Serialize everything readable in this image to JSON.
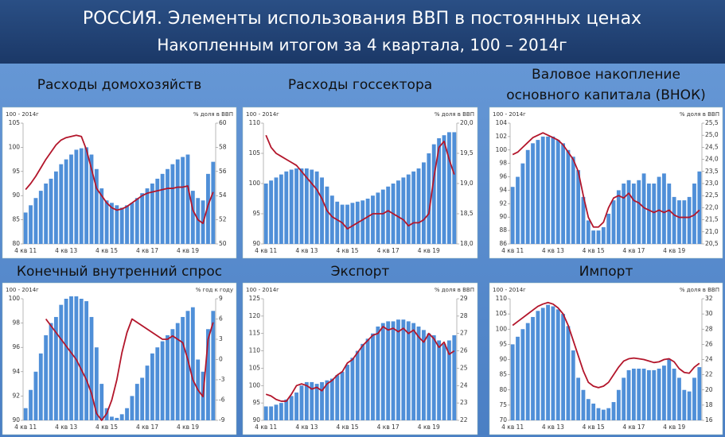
{
  "header": {
    "title": "РОССИЯ. Элементы использования ВВП в постоянных ценах",
    "subtitle": "Накопленным итогом за 4 квартала, 100 – 2014г"
  },
  "chart_data": [
    {
      "type": "combo",
      "title": "Расходы домохозяйств",
      "ylabel": "100 - 2014г",
      "y2label": "% доля в ВВП",
      "categories": [
        "4 кв 11",
        null,
        null,
        null,
        null,
        null,
        null,
        null,
        "4 кв 13",
        null,
        null,
        null,
        null,
        null,
        null,
        null,
        "4 кв 15",
        null,
        null,
        null,
        null,
        null,
        null,
        null,
        "4 кв 17",
        null,
        null,
        null,
        null,
        null,
        null,
        null,
        "4 кв 19",
        null,
        null,
        null,
        null,
        null
      ],
      "ylim": [
        80,
        105
      ],
      "yticks": [
        80,
        85,
        90,
        95,
        100,
        105
      ],
      "y2lim": [
        50,
        60
      ],
      "y2ticks": [
        50,
        52,
        54,
        56,
        58,
        60
      ],
      "series": [
        {
          "type": "bar",
          "color": "#4f8fd8",
          "values": [
            86.5,
            88,
            89.5,
            91,
            92.5,
            93.5,
            95,
            96.5,
            97.5,
            98.5,
            99.5,
            99.8,
            100,
            98.5,
            95.5,
            91.5,
            89,
            88.5,
            88,
            87.5,
            88,
            88.5,
            89.5,
            90.5,
            91.5,
            92.5,
            93.5,
            94.5,
            95.5,
            96.5,
            97.5,
            98,
            98.5,
            91,
            89.5,
            89,
            94.5,
            97
          ]
        },
        {
          "type": "line",
          "axis": "y2",
          "color": "#b3162b",
          "values": [
            54.5,
            55,
            55.6,
            56.3,
            57,
            57.6,
            58.2,
            58.6,
            58.8,
            58.9,
            59,
            58.9,
            57.8,
            56.2,
            54.6,
            54,
            53.4,
            53,
            52.8,
            52.9,
            53.1,
            53.4,
            53.7,
            54,
            54.2,
            54.3,
            54.4,
            54.5,
            54.6,
            54.6,
            54.7,
            54.7,
            54.8,
            52.8,
            52,
            51.7,
            53.2,
            54.3
          ]
        }
      ]
    },
    {
      "type": "combo",
      "title": "Расходы госсектора",
      "ylabel": "100 - 2014г",
      "y2label": "% доля в ВВП",
      "categories": [
        "4 кв 11",
        null,
        null,
        null,
        null,
        null,
        null,
        null,
        "4 кв 13",
        null,
        null,
        null,
        null,
        null,
        null,
        null,
        "4 кв 15",
        null,
        null,
        null,
        null,
        null,
        null,
        null,
        "4 кв 17",
        null,
        null,
        null,
        null,
        null,
        null,
        null,
        "4 кв 19",
        null,
        null,
        null,
        null,
        null
      ],
      "ylim": [
        90,
        110
      ],
      "yticks": [
        90,
        95,
        100,
        105,
        110
      ],
      "y2lim": [
        18,
        20
      ],
      "y2ticks": [
        {
          "value": 18,
          "label": "18,0"
        },
        {
          "value": 18.5,
          "label": "18,5"
        },
        {
          "value": 19,
          "label": "19,0"
        },
        {
          "value": 19.5,
          "label": "19,5"
        },
        {
          "value": 20,
          "label": "20,0"
        }
      ],
      "series": [
        {
          "type": "bar",
          "color": "#4f8fd8",
          "values": [
            100,
            100.5,
            101,
            101.5,
            102,
            102.3,
            102.5,
            102.5,
            102.5,
            102.3,
            102,
            101,
            99.5,
            98,
            97,
            96.5,
            96.5,
            96.8,
            97,
            97.2,
            97.5,
            98,
            98.5,
            99,
            99.5,
            100,
            100.5,
            101,
            101.5,
            102,
            102.5,
            103.5,
            105,
            106.5,
            107.5,
            108,
            108.5,
            108.5
          ]
        },
        {
          "type": "line",
          "axis": "y2",
          "color": "#b3162b",
          "values": [
            19.8,
            19.6,
            19.5,
            19.45,
            19.4,
            19.35,
            19.3,
            19.2,
            19.1,
            19.0,
            18.9,
            18.75,
            18.55,
            18.45,
            18.4,
            18.35,
            18.25,
            18.3,
            18.35,
            18.4,
            18.45,
            18.5,
            18.5,
            18.5,
            18.55,
            18.5,
            18.45,
            18.4,
            18.3,
            18.35,
            18.35,
            18.4,
            18.5,
            19.1,
            19.6,
            19.7,
            19.4,
            19.15
          ]
        }
      ]
    },
    {
      "type": "combo",
      "title": [
        "Валовое накопление",
        "основного капитала (ВНОК)"
      ],
      "ylabel": "100 - 2014г",
      "y2label": "% доля в ВВП",
      "categories": [
        "4 кв 11",
        null,
        null,
        null,
        null,
        null,
        null,
        null,
        "4 кв 13",
        null,
        null,
        null,
        null,
        null,
        null,
        null,
        "4 кв 15",
        null,
        null,
        null,
        null,
        null,
        null,
        null,
        "4 кв 17",
        null,
        null,
        null,
        null,
        null,
        null,
        null,
        "4 кв 19",
        null,
        null,
        null,
        null,
        null
      ],
      "ylim": [
        86,
        104
      ],
      "yticks": [
        86,
        88,
        90,
        92,
        94,
        96,
        98,
        100,
        102,
        104
      ],
      "y2lim": [
        20.5,
        25.5
      ],
      "y2ticks": [
        {
          "value": 20.5,
          "label": "20,5"
        },
        {
          "value": 21,
          "label": "21,0"
        },
        {
          "value": 21.5,
          "label": "21,5"
        },
        {
          "value": 22,
          "label": "22,0"
        },
        {
          "value": 22.5,
          "label": "22,5"
        },
        {
          "value": 23,
          "label": "23,0"
        },
        {
          "value": 23.5,
          "label": "23,5"
        },
        {
          "value": 24,
          "label": "24,0"
        },
        {
          "value": 24.5,
          "label": "24,5"
        },
        {
          "value": 25,
          "label": "25,0"
        },
        {
          "value": 25.5,
          "label": "25,5"
        }
      ],
      "series": [
        {
          "type": "bar",
          "color": "#4f8fd8",
          "values": [
            94.5,
            96,
            98,
            100,
            101,
            101.5,
            102,
            102,
            102,
            101.5,
            101,
            100,
            99,
            97,
            93,
            89.5,
            88,
            88,
            88.5,
            90.5,
            92.5,
            94,
            95,
            95.5,
            95,
            95.5,
            96.5,
            95,
            95,
            96,
            96.5,
            95,
            93,
            92.5,
            92.5,
            93,
            95,
            96.8
          ]
        },
        {
          "type": "line",
          "axis": "y2",
          "color": "#b3162b",
          "values": [
            24.2,
            24.3,
            24.5,
            24.7,
            24.9,
            25.0,
            25.1,
            25.0,
            24.9,
            24.8,
            24.6,
            24.3,
            24.0,
            23.5,
            22.5,
            21.6,
            21.2,
            21.2,
            21.4,
            22.0,
            22.4,
            22.5,
            22.4,
            22.6,
            22.3,
            22.2,
            22.0,
            21.9,
            21.8,
            21.9,
            21.8,
            21.9,
            21.7,
            21.6,
            21.6,
            21.6,
            21.7,
            21.9
          ]
        }
      ]
    },
    {
      "type": "combo",
      "title": "Конечный внутренний спрос",
      "ylabel": "100 - 2014г",
      "y2label": "% год к году",
      "categories": [
        "4 кв 11",
        null,
        null,
        null,
        null,
        null,
        null,
        null,
        "4 кв 13",
        null,
        null,
        null,
        null,
        null,
        null,
        null,
        "4 кв 15",
        null,
        null,
        null,
        null,
        null,
        null,
        null,
        "4 кв 17",
        null,
        null,
        null,
        null,
        null,
        null,
        null,
        "4 кв 19",
        null,
        null,
        null,
        null,
        null
      ],
      "ylim": [
        90,
        100
      ],
      "yticks": [
        90,
        92,
        94,
        96,
        98,
        100
      ],
      "y2lim": [
        -9,
        9
      ],
      "y2ticks": [
        -9,
        -6,
        -3,
        0,
        3,
        6,
        9
      ],
      "series": [
        {
          "type": "bar",
          "color": "#4f8fd8",
          "values": [
            91,
            92.5,
            94,
            95.5,
            97,
            98,
            98.5,
            99.5,
            100,
            100.2,
            100.2,
            100,
            99.8,
            98.5,
            96,
            93,
            91,
            90.3,
            90.2,
            90.5,
            91,
            92,
            93,
            93.5,
            94.5,
            95.5,
            96,
            96.5,
            97,
            97.5,
            98,
            98.5,
            99,
            99.3,
            95,
            94,
            97.5,
            99
          ]
        },
        {
          "type": "line",
          "axis": "y2",
          "color": "#b3162b",
          "values": [
            null,
            null,
            null,
            null,
            6,
            5,
            4,
            3,
            2,
            1,
            0,
            -1.5,
            -3,
            -5,
            -8,
            -9,
            -8,
            -6,
            -3,
            1,
            4,
            6,
            5.5,
            5,
            4.5,
            4,
            3.5,
            3,
            3,
            3.5,
            3,
            2.5,
            0,
            -3,
            -4.5,
            -5.5,
            3,
            5.5
          ]
        }
      ]
    },
    {
      "type": "combo",
      "title": "Экспорт",
      "ylabel": "100 - 2014г",
      "y2label": "% доля в ВВП",
      "categories": [
        "4 кв 11",
        null,
        null,
        null,
        null,
        null,
        null,
        null,
        "4 кв 13",
        null,
        null,
        null,
        null,
        null,
        null,
        null,
        "4 кв 15",
        null,
        null,
        null,
        null,
        null,
        null,
        null,
        "4 кв 17",
        null,
        null,
        null,
        null,
        null,
        null,
        null,
        "4 кв 19",
        null,
        null,
        null,
        null,
        null
      ],
      "ylim": [
        90,
        125
      ],
      "yticks": [
        90,
        95,
        100,
        105,
        110,
        115,
        120,
        125
      ],
      "y2lim": [
        22,
        29
      ],
      "y2ticks": [
        22,
        23,
        24,
        25,
        26,
        27,
        28,
        29
      ],
      "series": [
        {
          "type": "bar",
          "color": "#4f8fd8",
          "values": [
            94,
            94,
            94.5,
            95,
            96,
            97,
            98,
            100,
            101,
            101,
            100.5,
            101,
            101.5,
            102,
            103,
            104,
            106,
            108,
            110,
            112,
            113.5,
            115,
            117,
            118,
            118.5,
            118.5,
            119,
            119,
            118.5,
            118,
            117,
            116,
            115,
            114.5,
            113,
            112,
            113,
            114.5
          ]
        },
        {
          "type": "line",
          "axis": "y2",
          "color": "#b3162b",
          "values": [
            23.5,
            23.4,
            23.2,
            23.1,
            23.1,
            23.5,
            24,
            24.1,
            24.0,
            23.8,
            23.9,
            23.7,
            24.1,
            24.3,
            24.6,
            24.8,
            25.3,
            25.5,
            25.9,
            26.3,
            26.6,
            26.9,
            27.0,
            27.4,
            27.2,
            27.3,
            27.1,
            27.3,
            27.0,
            27.2,
            26.8,
            26.5,
            27.0,
            26.7,
            26.2,
            26.5,
            25.8,
            26.0
          ]
        }
      ]
    },
    {
      "type": "combo",
      "title": "Импорт",
      "ylabel": "100 - 2014г",
      "y2label": "% доля в ВВП",
      "categories": [
        "4 кв 11",
        null,
        null,
        null,
        null,
        null,
        null,
        null,
        "4 кв 13",
        null,
        null,
        null,
        null,
        null,
        null,
        null,
        "4 кв 15",
        null,
        null,
        null,
        null,
        null,
        null,
        null,
        "4 кв 17",
        null,
        null,
        null,
        null,
        null,
        null,
        null,
        "4 кв 19",
        null,
        null,
        null,
        null,
        null
      ],
      "ylim": [
        70,
        110
      ],
      "yticks": [
        70,
        75,
        80,
        85,
        90,
        95,
        100,
        105,
        110
      ],
      "y2lim": [
        16,
        32
      ],
      "y2ticks": [
        16,
        18,
        20,
        22,
        24,
        26,
        28,
        30,
        32
      ],
      "series": [
        {
          "type": "bar",
          "color": "#4f8fd8",
          "values": [
            95,
            97.5,
            100,
            102,
            104,
            106,
            107,
            108,
            107.5,
            106.5,
            105,
            101,
            93,
            84,
            80,
            77,
            75.5,
            74,
            73.5,
            74,
            76,
            80,
            84,
            86.5,
            87,
            87,
            87,
            86.5,
            86.5,
            87,
            88,
            90,
            87,
            84,
            80,
            79.5,
            84,
            87.5
          ]
        },
        {
          "type": "line",
          "axis": "y2",
          "color": "#b3162b",
          "values": [
            28.5,
            29,
            29.5,
            30,
            30.5,
            31,
            31.3,
            31.5,
            31.3,
            30.8,
            30,
            28.5,
            26.5,
            24.5,
            22.5,
            21,
            20.5,
            20.3,
            20.5,
            21,
            22,
            23,
            23.8,
            24.1,
            24.2,
            24.1,
            24,
            23.8,
            23.6,
            23.7,
            24.0,
            24.1,
            23.7,
            22.8,
            22.3,
            22.2,
            23.0,
            23.5
          ]
        }
      ]
    }
  ]
}
